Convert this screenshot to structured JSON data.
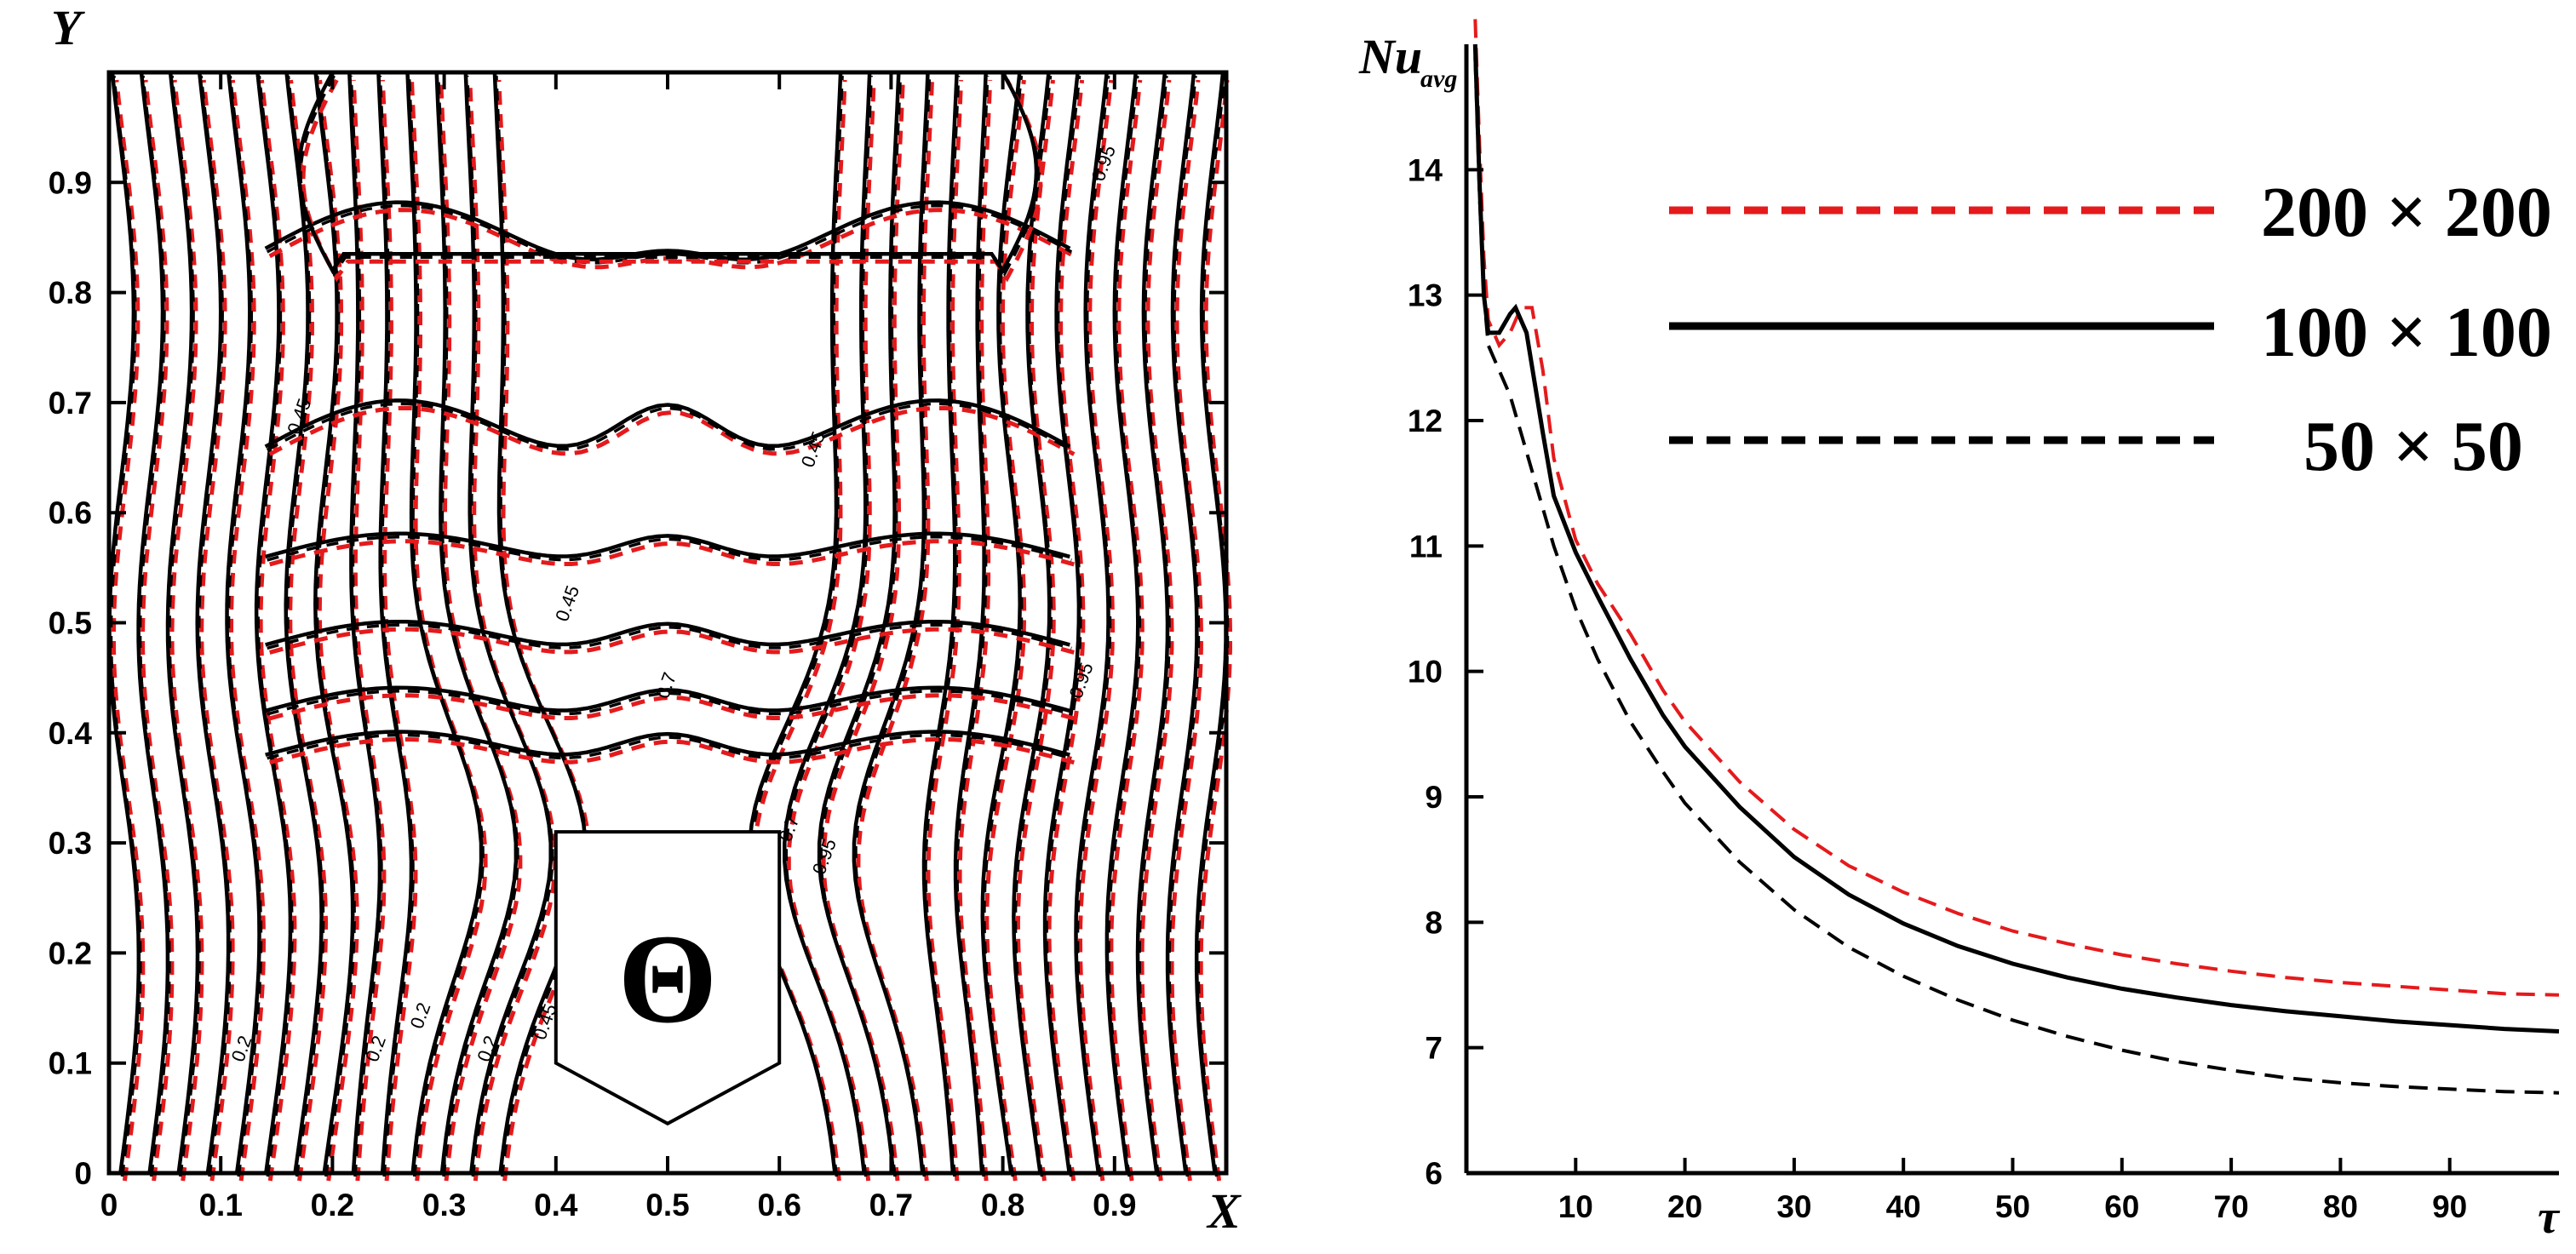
{
  "chart_data": [
    {
      "type": "contour",
      "title": "",
      "xlabel": "X",
      "ylabel": "Y",
      "xlim": [
        0,
        1
      ],
      "ylim": [
        0,
        1
      ],
      "xticks": [
        "0",
        "0.1",
        "0.2",
        "0.3",
        "0.4",
        "0.5",
        "0.6",
        "0.7",
        "0.8",
        "0.9"
      ],
      "yticks": [
        "0",
        "0.1",
        "0.2",
        "0.3",
        "0.4",
        "0.5",
        "0.6",
        "0.7",
        "0.8",
        "0.9"
      ],
      "field_symbol": "Θ",
      "contour_labels": [
        "0.45",
        "0.45",
        "0.45",
        "0.7",
        "0.95",
        "0.95",
        "0.2",
        "0.2",
        "0.2",
        "0.45",
        "0.7",
        "0.95",
        "0.2"
      ],
      "series": [
        {
          "name": "200 × 200",
          "color": "#e41a1c",
          "style": "dashed"
        },
        {
          "name": "100 × 100",
          "color": "#000000",
          "style": "solid"
        },
        {
          "name": "50 × 50",
          "color": "#000000",
          "style": "dashed"
        }
      ]
    },
    {
      "type": "line",
      "title": "",
      "xlabel": "τ",
      "ylabel": "Nu",
      "ylabel_subscript": "avg",
      "xlim": [
        0,
        100
      ],
      "ylim": [
        6,
        15
      ],
      "xticks": [
        "10",
        "20",
        "30",
        "40",
        "50",
        "60",
        "70",
        "80",
        "90"
      ],
      "yticks": [
        "6",
        "7",
        "8",
        "9",
        "10",
        "11",
        "12",
        "13",
        "14"
      ],
      "legend": [
        {
          "label": "200 × 200",
          "color": "#e41a1c",
          "style": "dashed"
        },
        {
          "label": "100 × 100",
          "color": "#000000",
          "style": "solid"
        },
        {
          "label": "50 × 50",
          "color": "#000000",
          "style": "dashed"
        }
      ],
      "series": [
        {
          "name": "200 × 200",
          "color": "#e41a1c",
          "style": "dashed",
          "x": [
            0.8,
            1.2,
            1.6,
            2.0,
            3.0,
            4.0,
            5.0,
            6.0,
            7.0,
            8.0,
            10.0,
            12.0,
            15.0,
            18.0,
            20.0,
            25.0,
            30.0,
            35.0,
            40.0,
            45.0,
            50.0,
            55.0,
            60.0,
            65.0,
            70.0,
            75.0,
            80.0,
            85.0,
            90.0,
            95.0,
            100.0
          ],
          "y": [
            15.2,
            14.2,
            13.3,
            12.8,
            12.6,
            12.7,
            12.9,
            12.9,
            12.4,
            11.7,
            11.05,
            10.7,
            10.3,
            9.85,
            9.6,
            9.12,
            8.74,
            8.45,
            8.24,
            8.07,
            7.93,
            7.83,
            7.74,
            7.67,
            7.61,
            7.56,
            7.52,
            7.49,
            7.46,
            7.43,
            7.42
          ]
        },
        {
          "name": "100 × 100",
          "color": "#000000",
          "style": "solid",
          "x": [
            0.8,
            1.2,
            1.6,
            2.0,
            3.0,
            4.0,
            4.5,
            5.5,
            7.0,
            8.0,
            10.0,
            12.0,
            15.0,
            18.0,
            20.0,
            25.0,
            30.0,
            35.0,
            40.0,
            45.0,
            50.0,
            55.0,
            60.0,
            65.0,
            70.0,
            75.0,
            80.0,
            85.0,
            90.0,
            95.0,
            100.0
          ],
          "y": [
            15.0,
            13.9,
            13.0,
            12.7,
            12.7,
            12.85,
            12.9,
            12.7,
            11.9,
            11.4,
            10.95,
            10.6,
            10.1,
            9.65,
            9.4,
            8.92,
            8.52,
            8.22,
            7.99,
            7.81,
            7.67,
            7.56,
            7.47,
            7.4,
            7.34,
            7.29,
            7.25,
            7.21,
            7.18,
            7.15,
            7.13
          ]
        },
        {
          "name": "50 × 50",
          "color": "#000000",
          "style": "dashed",
          "x": [
            0.8,
            1.2,
            1.6,
            2.0,
            3.0,
            4.0,
            5.0,
            6.0,
            7.0,
            8.0,
            10.0,
            12.0,
            15.0,
            18.0,
            20.0,
            25.0,
            30.0,
            35.0,
            40.0,
            45.0,
            50.0,
            55.0,
            60.0,
            65.0,
            70.0,
            75.0,
            80.0,
            85.0,
            90.0,
            95.0,
            100.0
          ],
          "y": [
            14.9,
            13.8,
            13.0,
            12.6,
            12.4,
            12.2,
            11.9,
            11.6,
            11.3,
            11.0,
            10.5,
            10.1,
            9.6,
            9.2,
            8.95,
            8.48,
            8.1,
            7.8,
            7.57,
            7.38,
            7.22,
            7.09,
            6.98,
            6.89,
            6.82,
            6.76,
            6.72,
            6.69,
            6.67,
            6.65,
            6.64
          ]
        }
      ]
    }
  ]
}
